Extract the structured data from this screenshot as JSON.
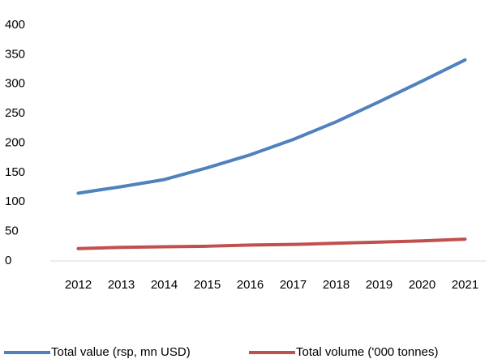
{
  "chart_data": {
    "type": "line",
    "categories": [
      "2012",
      "2013",
      "2014",
      "2015",
      "2016",
      "2017",
      "2018",
      "2019",
      "2020",
      "2021"
    ],
    "series": [
      {
        "name": "Total value (rsp, mn USD)",
        "color": "#4f81bd",
        "values": [
          115,
          126,
          138,
          158,
          180,
          206,
          236,
          270,
          305,
          341
        ]
      },
      {
        "name": "Total volume ('000 tonnes)",
        "color": "#c0504d",
        "values": [
          21,
          23,
          24,
          25,
          27,
          28,
          30,
          32,
          34,
          37
        ]
      }
    ],
    "ylim": [
      0,
      400
    ],
    "yticks": [
      0,
      50,
      100,
      150,
      200,
      250,
      300,
      350,
      400
    ],
    "grid": false
  }
}
